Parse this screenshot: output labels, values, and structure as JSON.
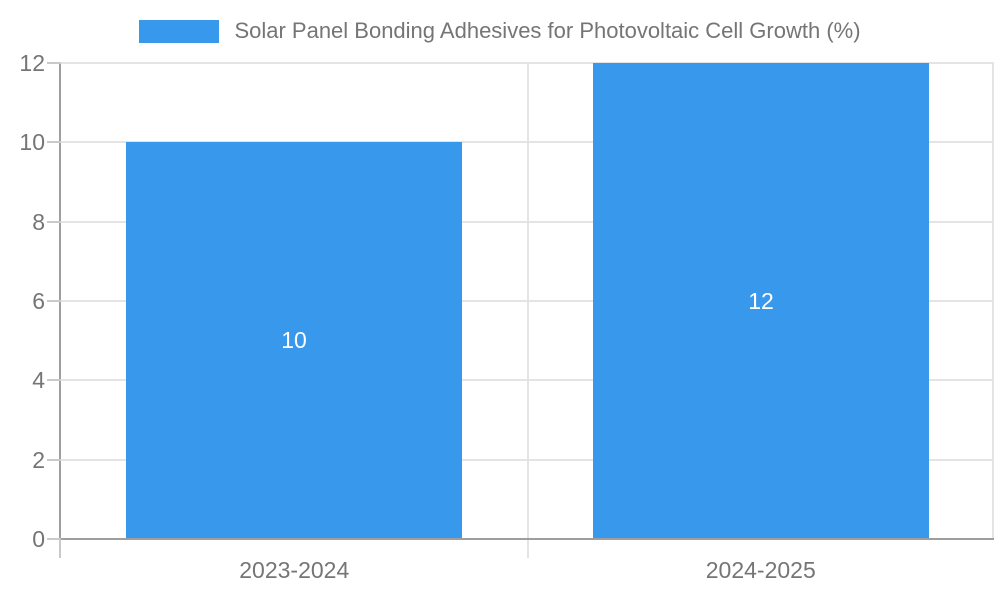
{
  "chart_data": {
    "type": "bar",
    "title": "",
    "legend": {
      "label": "Solar Panel Bonding Adhesives for Photovoltaic Cell Growth (%)",
      "position": "top"
    },
    "categories": [
      "2023-2024",
      "2024-2025"
    ],
    "values": [
      10,
      12
    ],
    "data_labels": [
      "10",
      "12"
    ],
    "xlabel": "",
    "ylabel": "",
    "ylim": [
      0,
      12
    ],
    "yticks": [
      0,
      2,
      4,
      6,
      8,
      10,
      12
    ],
    "grid": true
  },
  "colors": {
    "bar": "#3898ec",
    "bar_label": "#ffffff",
    "text": "#757575",
    "axis": "#9e9e9e",
    "tick": "#c9c9c9",
    "grid": "#e4e4e4",
    "background": "#ffffff"
  }
}
